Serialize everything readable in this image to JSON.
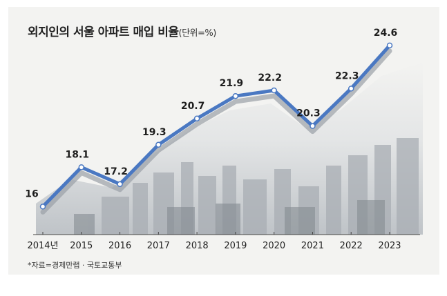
{
  "chart_data": {
    "type": "line",
    "title": "외지인의 서울 아파트 매입 비율",
    "unit": "(단위=%)",
    "categories": [
      "2014년",
      "2015",
      "2016",
      "2017",
      "2018",
      "2019",
      "2020",
      "2021",
      "2022",
      "2023"
    ],
    "values": [
      16,
      18.1,
      17.2,
      19.3,
      20.7,
      21.9,
      22.2,
      20.3,
      22.3,
      24.6
    ],
    "value_labels": [
      "16",
      "18.1",
      "17.2",
      "19.3",
      "20.7",
      "21.9",
      "22.2",
      "20.3",
      "22.3",
      "24.6"
    ],
    "ylim": [
      15.5,
      25
    ],
    "grid": false,
    "legend": "none",
    "source": "*자료=경제만랩 · 국토교통부",
    "colors": {
      "line": "#4a78c2",
      "shadow": "#9aa0a6",
      "marker_fill": "#ffffff",
      "axis": "#444444"
    }
  }
}
